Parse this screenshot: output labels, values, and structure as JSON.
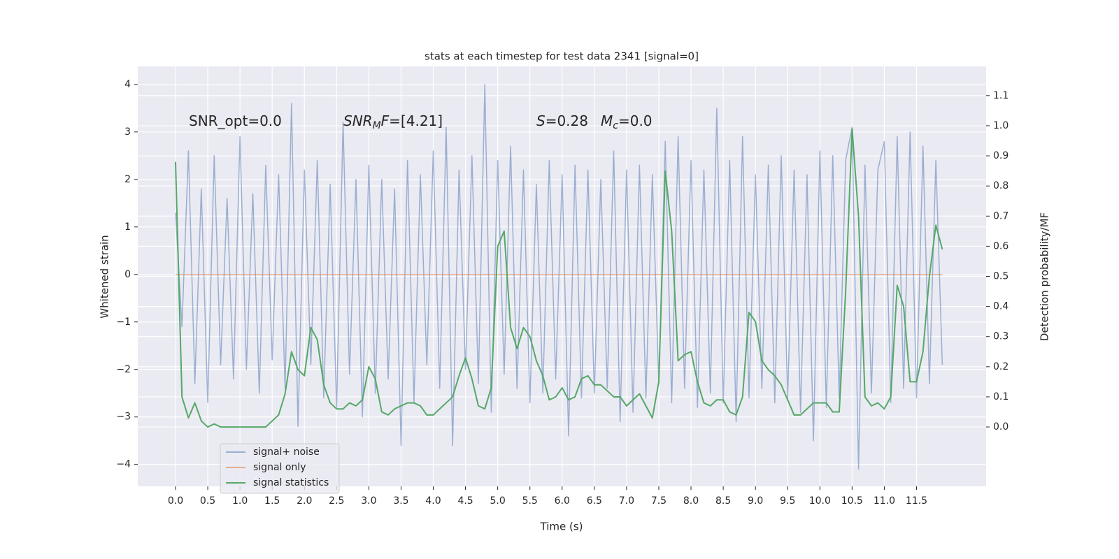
{
  "chart_data": {
    "type": "line",
    "title": "stats at each timestep for test data 2341 [signal=0]",
    "x_label": "Time (s)",
    "y_label": "Whitened strain",
    "y2_label": "Detection probability/MF",
    "annotations": [
      [
        {
          "text": "SNR_opt=0.0",
          "style": "normal"
        }
      ],
      [
        {
          "text": "SNR",
          "style": "italic"
        },
        {
          "text": "M",
          "style": "italic-sub"
        },
        {
          "text": "F",
          "style": "italic"
        },
        {
          "text": "=[4.21]",
          "style": "normal"
        }
      ],
      [
        {
          "text": "S",
          "style": "italic"
        },
        {
          "text": "=0.28",
          "style": "normal"
        }
      ],
      [
        {
          "text": "M",
          "style": "italic"
        },
        {
          "text": "c",
          "style": "italic-sub"
        },
        {
          "text": "=0.0",
          "style": "normal"
        }
      ]
    ],
    "x": [
      0,
      0.1,
      0.2,
      0.3,
      0.4,
      0.5,
      0.6,
      0.7,
      0.8,
      0.9,
      1,
      1.1,
      1.2,
      1.3,
      1.4,
      1.5,
      1.6,
      1.7,
      1.8,
      1.9,
      2,
      2.1,
      2.2,
      2.3,
      2.4,
      2.5,
      2.6,
      2.7,
      2.8,
      2.9,
      3,
      3.1,
      3.2,
      3.3,
      3.4,
      3.5,
      3.6,
      3.7,
      3.8,
      3.9,
      4,
      4.1,
      4.2,
      4.3,
      4.4,
      4.5,
      4.6,
      4.7,
      4.8,
      4.9,
      5,
      5.1,
      5.2,
      5.3,
      5.4,
      5.5,
      5.6,
      5.7,
      5.8,
      5.9,
      6,
      6.1,
      6.2,
      6.3,
      6.4,
      6.5,
      6.6,
      6.7,
      6.8,
      6.9,
      7,
      7.1,
      7.2,
      7.3,
      7.4,
      7.5,
      7.6,
      7.7,
      7.8,
      7.9,
      8,
      8.1,
      8.2,
      8.3,
      8.4,
      8.5,
      8.6,
      8.7,
      8.8,
      8.9,
      9,
      9.1,
      9.2,
      9.3,
      9.4,
      9.5,
      9.6,
      9.7,
      9.8,
      9.9,
      10,
      10.1,
      10.2,
      10.3,
      10.4,
      10.5,
      10.6,
      10.7,
      10.8,
      10.9,
      11,
      11.1,
      11.2,
      11.3,
      11.4,
      11.5,
      11.6,
      11.7,
      11.8,
      11.9
    ],
    "series": [
      {
        "name": "signal+ noise",
        "color": "#4c72b0",
        "alpha": 0.5,
        "axis": "y",
        "values": [
          1.3,
          -1.1,
          2.6,
          -2.3,
          1.8,
          -2.7,
          2.5,
          -1.9,
          1.6,
          -2.2,
          2.9,
          -2.0,
          1.7,
          -2.5,
          2.3,
          -1.8,
          2.1,
          -2.4,
          3.6,
          -3.2,
          2.2,
          -1.9,
          2.4,
          -2.6,
          1.9,
          -2.8,
          3.2,
          -2.1,
          2.0,
          -3.0,
          2.3,
          -2.5,
          2.0,
          -2.2,
          1.8,
          -3.6,
          2.4,
          -2.7,
          2.1,
          -1.9,
          2.6,
          -2.4,
          3.1,
          -3.6,
          2.2,
          -2.0,
          2.5,
          -2.3,
          4.0,
          -2.9,
          2.4,
          -2.1,
          2.7,
          -2.4,
          2.2,
          -2.7,
          1.9,
          -2.5,
          2.4,
          -2.2,
          2.1,
          -3.4,
          2.3,
          -2.6,
          2.2,
          -2.5,
          2.0,
          -2.4,
          2.6,
          -3.1,
          2.2,
          -2.9,
          2.3,
          -2.6,
          2.1,
          -2.3,
          2.8,
          -2.7,
          2.9,
          -2.4,
          2.4,
          -2.8,
          2.2,
          -2.5,
          3.5,
          -2.7,
          2.4,
          -3.1,
          2.9,
          -2.6,
          2.1,
          -2.4,
          2.3,
          -2.7,
          2.5,
          -2.6,
          2.2,
          -2.9,
          2.1,
          -3.5,
          2.6,
          -2.8,
          2.5,
          -2.6,
          2.4,
          3.1,
          -4.1,
          2.3,
          -2.5,
          2.2,
          2.8,
          -2.7,
          2.9,
          -2.4,
          3.0,
          -2.6,
          2.7,
          -2.3,
          2.4,
          -1.9
        ]
      },
      {
        "name": "signal only",
        "color": "#dd8452",
        "alpha": 0.6,
        "axis": "y",
        "values": [
          0,
          0,
          0,
          0,
          0,
          0,
          0,
          0,
          0,
          0,
          0,
          0,
          0,
          0,
          0,
          0,
          0,
          0,
          0,
          0,
          0,
          0,
          0,
          0,
          0,
          0,
          0,
          0,
          0,
          0,
          0,
          0,
          0,
          0,
          0,
          0,
          0,
          0,
          0,
          0,
          0,
          0,
          0,
          0,
          0,
          0,
          0,
          0,
          0,
          0,
          0,
          0,
          0,
          0,
          0,
          0,
          0,
          0,
          0,
          0,
          0,
          0,
          0,
          0,
          0,
          0,
          0,
          0,
          0,
          0,
          0,
          0,
          0,
          0,
          0,
          0,
          0,
          0,
          0,
          0,
          0,
          0,
          0,
          0,
          0,
          0,
          0,
          0,
          0,
          0,
          0,
          0,
          0,
          0,
          0,
          0,
          0,
          0,
          0,
          0,
          0,
          0,
          0,
          0,
          0,
          0,
          0,
          0,
          0,
          0,
          0,
          0,
          0,
          0,
          0,
          0,
          0,
          0,
          0,
          0
        ]
      },
      {
        "name": "signal statistics",
        "color": "#55a868",
        "alpha": 1,
        "axis": "y2",
        "values": [
          0.88,
          0.1,
          0.03,
          0.08,
          0.02,
          0.0,
          0.01,
          0.0,
          0.0,
          0.0,
          0.0,
          0.0,
          0.0,
          0.0,
          0.0,
          0.02,
          0.04,
          0.11,
          0.25,
          0.19,
          0.17,
          0.33,
          0.29,
          0.14,
          0.08,
          0.06,
          0.06,
          0.08,
          0.07,
          0.09,
          0.2,
          0.16,
          0.05,
          0.04,
          0.06,
          0.07,
          0.08,
          0.08,
          0.07,
          0.04,
          0.04,
          0.06,
          0.08,
          0.1,
          0.17,
          0.23,
          0.16,
          0.07,
          0.06,
          0.13,
          0.6,
          0.65,
          0.33,
          0.26,
          0.33,
          0.3,
          0.22,
          0.17,
          0.09,
          0.1,
          0.13,
          0.09,
          0.1,
          0.16,
          0.17,
          0.14,
          0.14,
          0.12,
          0.1,
          0.1,
          0.07,
          0.09,
          0.11,
          0.07,
          0.03,
          0.15,
          0.85,
          0.65,
          0.22,
          0.24,
          0.25,
          0.15,
          0.08,
          0.07,
          0.09,
          0.09,
          0.05,
          0.04,
          0.1,
          0.38,
          0.35,
          0.22,
          0.19,
          0.17,
          0.14,
          0.09,
          0.04,
          0.04,
          0.06,
          0.08,
          0.08,
          0.08,
          0.05,
          0.05,
          0.45,
          0.99,
          0.7,
          0.1,
          0.07,
          0.08,
          0.06,
          0.1,
          0.47,
          0.4,
          0.15,
          0.15,
          0.25,
          0.5,
          0.67,
          0.59
        ]
      }
    ],
    "xlim": [
      -0.586,
      12.58
    ],
    "ylim": [
      -4.46,
      4.38
    ],
    "y2lim": [
      -0.197,
      1.197
    ],
    "xticks": [
      {
        "value": 0,
        "label": "0.0"
      },
      0.5,
      {
        "value": 1,
        "label": "1.0"
      },
      1.5,
      {
        "value": 2,
        "label": "2.0"
      },
      2.5,
      {
        "value": 3,
        "label": "3.0"
      },
      3.5,
      {
        "value": 4,
        "label": "4.0"
      },
      4.5,
      {
        "value": 5,
        "label": "5.0"
      },
      5.5,
      {
        "value": 6,
        "label": "6.0"
      },
      6.5,
      {
        "value": 7,
        "label": "7.0"
      },
      7.5,
      {
        "value": 8,
        "label": "8.0"
      },
      8.5,
      {
        "value": 9,
        "label": "9.0"
      },
      9.5,
      {
        "value": 10,
        "label": "10.0"
      },
      10.5,
      {
        "value": 11,
        "label": "11.0"
      },
      11.5
    ],
    "yticks": [
      {
        "value": -4,
        "label": "−4"
      },
      {
        "value": -3,
        "label": "−3"
      },
      {
        "value": -2,
        "label": "−2"
      },
      {
        "value": -1,
        "label": "−1"
      },
      0,
      1,
      2,
      3,
      4
    ],
    "y2ticks": [
      {
        "value": 0,
        "label": "0.0"
      },
      0.1,
      0.2,
      0.3,
      0.4,
      0.5,
      0.6,
      0.7,
      0.8,
      0.9,
      {
        "value": 1,
        "label": "1.0"
      },
      1.1
    ],
    "grid": true,
    "legend": "lower left"
  }
}
